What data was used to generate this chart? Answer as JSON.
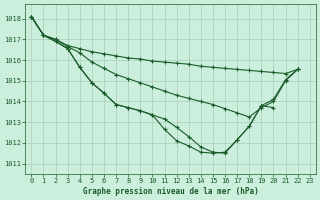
{
  "title": "Graphe pression niveau de la mer (hPa)",
  "bg_color": "#cceedd",
  "grid_color": "#aaccbb",
  "line_color": "#1a5c2a",
  "xlim": [
    -0.5,
    23.5
  ],
  "ylim": [
    1010.5,
    1018.7
  ],
  "yticks": [
    1011,
    1012,
    1013,
    1014,
    1015,
    1016,
    1017,
    1018
  ],
  "xticks": [
    0,
    1,
    2,
    3,
    4,
    5,
    6,
    7,
    8,
    9,
    10,
    11,
    12,
    13,
    14,
    15,
    16,
    17,
    18,
    19,
    20,
    21,
    22,
    23
  ],
  "series": [
    {
      "x": [
        0,
        1,
        2,
        3,
        4,
        5,
        6,
        7,
        8,
        9,
        10,
        11,
        12,
        13,
        14,
        15,
        16,
        17,
        18,
        19,
        20,
        21,
        22
      ],
      "y": [
        1018.1,
        1017.2,
        1017.0,
        1016.7,
        1016.55,
        1016.4,
        1016.3,
        1016.2,
        1016.1,
        1016.05,
        1015.95,
        1015.9,
        1015.85,
        1015.8,
        1015.7,
        1015.65,
        1015.6,
        1015.55,
        1015.5,
        1015.45,
        1015.4,
        1015.35,
        1015.55
      ]
    },
    {
      "x": [
        0,
        1,
        2,
        3,
        4,
        5,
        6,
        7,
        8,
        9,
        10,
        11,
        12,
        13,
        14,
        15,
        16,
        17,
        18,
        19,
        20,
        21,
        22
      ],
      "y": [
        1018.1,
        1017.2,
        1017.0,
        1016.65,
        1016.35,
        1015.9,
        1015.6,
        1015.3,
        1015.1,
        1014.9,
        1014.7,
        1014.5,
        1014.3,
        1014.15,
        1014.0,
        1013.85,
        1013.65,
        1013.45,
        1013.25,
        1013.7,
        1014.0,
        1015.0,
        1015.55
      ]
    },
    {
      "x": [
        0,
        1,
        2,
        3,
        4,
        5,
        6,
        7,
        8,
        9,
        10,
        11,
        12,
        13,
        14,
        15,
        16,
        17,
        18,
        19,
        20
      ],
      "y": [
        1018.1,
        1017.2,
        1016.9,
        1016.55,
        1015.65,
        1014.9,
        1014.4,
        1013.85,
        1013.7,
        1013.55,
        1013.35,
        1013.15,
        1012.75,
        1012.3,
        1011.8,
        1011.55,
        1011.5,
        1012.15,
        1012.8,
        1013.8,
        1013.7
      ]
    },
    {
      "x": [
        0,
        1,
        2,
        3,
        4,
        5,
        6,
        7,
        8,
        9,
        10,
        11,
        12,
        13,
        14,
        15,
        16,
        17,
        18,
        19,
        20,
        21,
        22
      ],
      "y": [
        1018.1,
        1017.2,
        1016.9,
        1016.55,
        1015.65,
        1014.9,
        1014.4,
        1013.85,
        1013.7,
        1013.55,
        1013.35,
        1012.65,
        1012.1,
        1011.85,
        1011.55,
        1011.5,
        1011.55,
        1012.15,
        1012.8,
        1013.8,
        1014.1,
        1015.05,
        1015.55
      ]
    }
  ]
}
